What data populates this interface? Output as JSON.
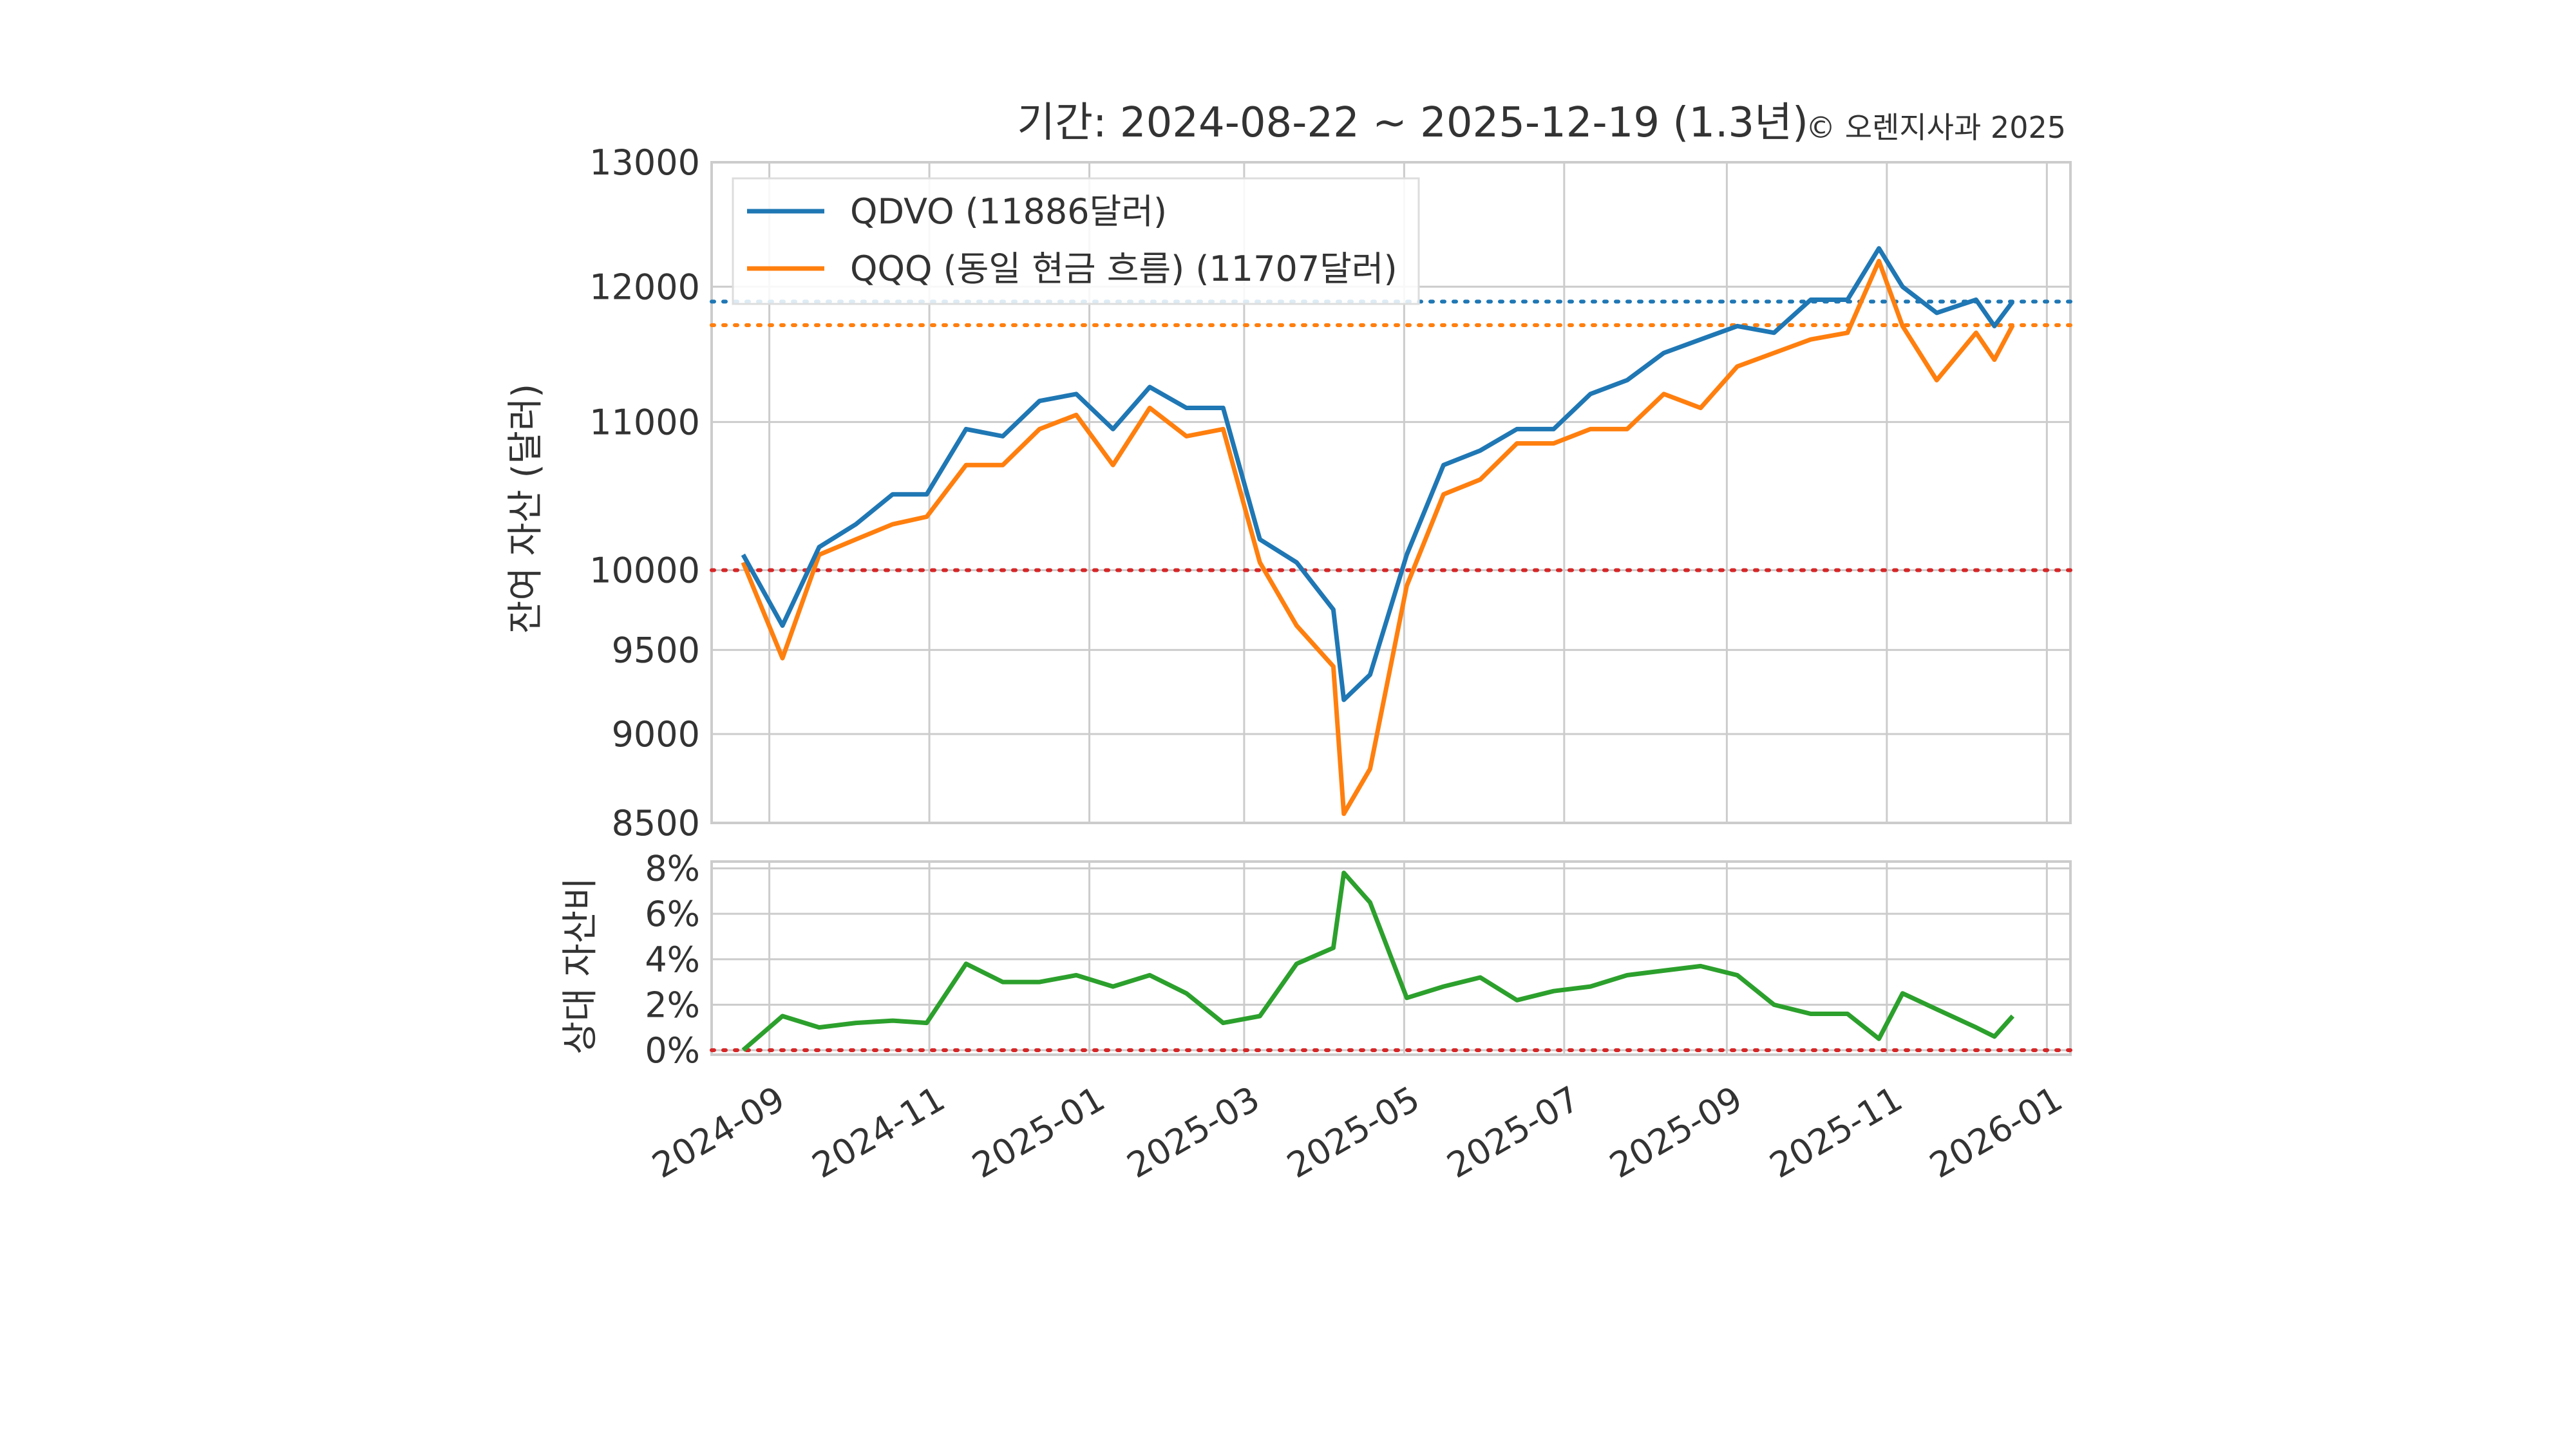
{
  "title": {
    "main": "기간: 2024-08-22 ~ 2025-12-19 (1.3년)",
    "copyright": "© 오렌지사과 2025"
  },
  "colors": {
    "qdvo": "#1f77b4",
    "qqq": "#ff7f0e",
    "ratio": "#2ca02c",
    "baseline": "#d62728",
    "grid": "#cccccc",
    "frame": "#cccccc"
  },
  "chart_data": [
    {
      "type": "line",
      "title": "기간: 2024-08-22 ~ 2025-12-19 (1.3년)",
      "ylabel": "잔여 자산 (달러)",
      "ylim": [
        8500,
        13000
      ],
      "yscale": "log",
      "yticks": [
        8500,
        9000,
        9500,
        10000,
        11000,
        12000,
        13000
      ],
      "ytick_labels": [
        "8500",
        "9000",
        "9500",
        "10000",
        "11000",
        "12000",
        "13000"
      ],
      "grid": true,
      "legend_position": "top-left",
      "x": [
        "2024-08-22",
        "2024-09-06",
        "2024-09-20",
        "2024-10-04",
        "2024-10-18",
        "2024-10-31",
        "2024-11-15",
        "2024-11-29",
        "2024-12-13",
        "2024-12-27",
        "2025-01-10",
        "2025-01-24",
        "2025-02-07",
        "2025-02-21",
        "2025-03-07",
        "2025-03-21",
        "2025-04-04",
        "2025-04-08",
        "2025-04-18",
        "2025-05-02",
        "2025-05-16",
        "2025-05-30",
        "2025-06-13",
        "2025-06-27",
        "2025-07-11",
        "2025-07-25",
        "2025-08-08",
        "2025-08-22",
        "2025-09-05",
        "2025-09-19",
        "2025-10-03",
        "2025-10-17",
        "2025-10-29",
        "2025-11-07",
        "2025-11-20",
        "2025-12-05",
        "2025-12-12",
        "2025-12-19"
      ],
      "series": [
        {
          "name": "QDVO",
          "legend": "QDVO (11886달러)",
          "values": [
            10100,
            9650,
            10150,
            10300,
            10500,
            10500,
            10950,
            10900,
            11150,
            11200,
            10950,
            11250,
            11100,
            11100,
            10200,
            10050,
            9750,
            9200,
            9350,
            10100,
            10700,
            10800,
            10950,
            10950,
            11200,
            11300,
            11500,
            11600,
            11700,
            11650,
            11900,
            11900,
            12300,
            12000,
            11800,
            11900,
            11700,
            11886
          ],
          "final_value": 11886,
          "reference_line": 11886
        },
        {
          "name": "QQQ (동일 현금 흐름)",
          "legend": "QQQ (동일 현금 흐름) (11707달러)",
          "values": [
            10050,
            9450,
            10100,
            10200,
            10300,
            10350,
            10700,
            10700,
            10950,
            11050,
            10700,
            11100,
            10900,
            10950,
            10050,
            9650,
            9400,
            8550,
            8800,
            9900,
            10500,
            10600,
            10850,
            10850,
            10950,
            10950,
            11200,
            11100,
            11400,
            11500,
            11600,
            11650,
            12200,
            11700,
            11300,
            11650,
            11450,
            11707
          ],
          "final_value": 11707,
          "reference_line": 11707
        }
      ],
      "baseline": 10000
    },
    {
      "type": "line",
      "ylabel": "상대 자산비",
      "ylim": [
        -0.2,
        8.3
      ],
      "yticks": [
        0,
        2,
        4,
        6,
        8
      ],
      "ytick_labels": [
        "0%",
        "2%",
        "4%",
        "6%",
        "8%"
      ],
      "grid": true,
      "x": [
        "2024-08-22",
        "2024-09-06",
        "2024-09-20",
        "2024-10-04",
        "2024-10-18",
        "2024-10-31",
        "2024-11-15",
        "2024-11-29",
        "2024-12-13",
        "2024-12-27",
        "2025-01-10",
        "2025-01-24",
        "2025-02-07",
        "2025-02-21",
        "2025-03-07",
        "2025-03-21",
        "2025-04-04",
        "2025-04-08",
        "2025-04-18",
        "2025-05-02",
        "2025-05-16",
        "2025-05-30",
        "2025-06-13",
        "2025-06-27",
        "2025-07-11",
        "2025-07-25",
        "2025-08-08",
        "2025-08-22",
        "2025-09-05",
        "2025-09-19",
        "2025-10-03",
        "2025-10-17",
        "2025-10-29",
        "2025-11-07",
        "2025-11-20",
        "2025-12-05",
        "2025-12-12",
        "2025-12-19"
      ],
      "series": [
        {
          "name": "상대 자산비",
          "values": [
            0.0,
            1.5,
            1.0,
            1.2,
            1.3,
            1.2,
            3.8,
            3.0,
            3.0,
            3.3,
            2.8,
            3.3,
            2.5,
            1.2,
            1.5,
            3.8,
            4.5,
            7.8,
            6.5,
            2.3,
            2.8,
            3.2,
            2.2,
            2.6,
            2.8,
            3.3,
            3.5,
            3.7,
            3.3,
            2.0,
            1.6,
            1.6,
            0.5,
            2.5,
            1.8,
            1.0,
            0.6,
            1.5
          ]
        }
      ],
      "baseline": 0
    }
  ],
  "x_axis": {
    "ticks": [
      "2024-09-01",
      "2024-11-01",
      "2025-01-01",
      "2025-03-01",
      "2025-05-01",
      "2025-07-01",
      "2025-09-01",
      "2025-11-01",
      "2026-01-01"
    ],
    "tick_labels": [
      "2024-09",
      "2024-11",
      "2025-01",
      "2025-03",
      "2025-05",
      "2025-07",
      "2025-09",
      "2025-11",
      "2026-01"
    ],
    "range": [
      "2024-08-10",
      "2026-01-10"
    ]
  }
}
